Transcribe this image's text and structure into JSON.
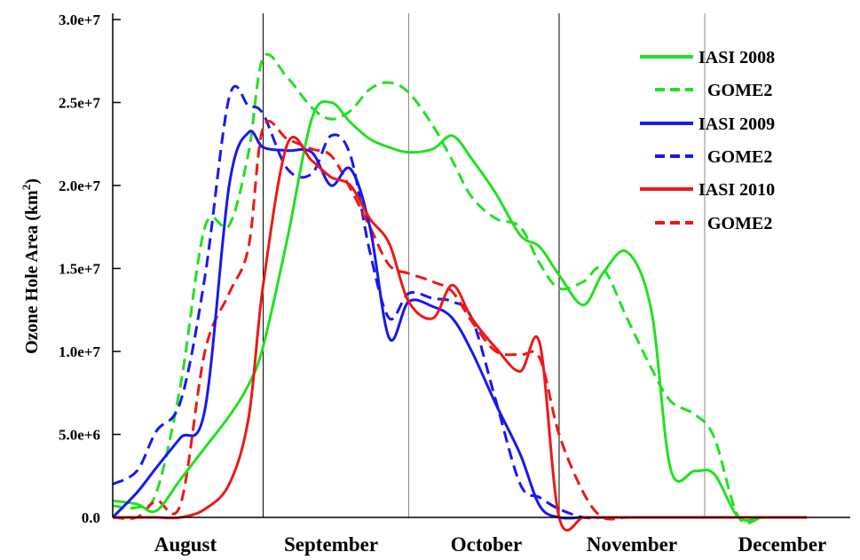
{
  "chart_data": {
    "type": "line",
    "title": "",
    "xlabel": "",
    "ylabel": "Ozone Hole Area (km",
    "ylabel_sup": "2",
    "ylabel_suffix": ")",
    "ylim": [
      0,
      30000000
    ],
    "yticks": [
      {
        "value": 0,
        "label": "0.0"
      },
      {
        "value": 5000000,
        "label": "5.0e+6"
      },
      {
        "value": 10000000,
        "label": "1.0e+7"
      },
      {
        "value": 15000000,
        "label": "1.5e+7"
      },
      {
        "value": 20000000,
        "label": "2.0e+7"
      },
      {
        "value": 25000000,
        "label": "2.5e+7"
      },
      {
        "value": 30000000,
        "label": "3.0e+7"
      }
    ],
    "xlim": [
      213,
      365
    ],
    "month_labels": [
      {
        "label": "August",
        "center": 228
      },
      {
        "label": "September",
        "center": 258
      },
      {
        "label": "October",
        "center": 290
      },
      {
        "label": "November",
        "center": 320
      },
      {
        "label": "December",
        "center": 351
      }
    ],
    "month_boundaries": [
      244,
      274,
      305,
      335
    ],
    "legend_position": "top-right",
    "series": [
      {
        "name": "IASI 2008",
        "color": "#22e022",
        "dash": false,
        "x": [
          213,
          218,
          222,
          227,
          232,
          237,
          241,
          244,
          249,
          254,
          258,
          262,
          266,
          270,
          274,
          279,
          283,
          287,
          292,
          297,
          301,
          305,
          310,
          314,
          319,
          324,
          328,
          333,
          337,
          342,
          347,
          352,
          356
        ],
        "y": [
          1000000,
          800000,
          400000,
          2300000,
          4200000,
          6100000,
          8000000,
          10300000,
          16800000,
          24000000,
          25000000,
          23800000,
          22800000,
          22300000,
          22000000,
          22200000,
          23000000,
          21600000,
          19500000,
          17000000,
          16300000,
          14600000,
          12800000,
          14700000,
          16000000,
          12500000,
          2900000,
          2800000,
          2600000,
          0,
          0,
          0,
          0
        ]
      },
      {
        "name": "GOME2",
        "color": "#22e022",
        "dash": true,
        "x": [
          213,
          218,
          222,
          227,
          232,
          237,
          241,
          244,
          249,
          254,
          258,
          262,
          266,
          270,
          274,
          279,
          283,
          287,
          292,
          297,
          301,
          305,
          310,
          314,
          319,
          324,
          328,
          333,
          337,
          342,
          347,
          352,
          356
        ],
        "y": [
          700000,
          600000,
          1500000,
          8000000,
          17500000,
          17600000,
          22000000,
          27700000,
          26500000,
          24700000,
          24000000,
          24500000,
          25800000,
          26200000,
          25600000,
          23600000,
          21500000,
          19300000,
          18000000,
          17500000,
          15300000,
          13800000,
          14200000,
          15000000,
          12000000,
          9000000,
          7000000,
          6200000,
          4800000,
          0,
          0,
          0,
          0
        ]
      },
      {
        "name": "IASI 2009",
        "color": "#1818ee",
        "dash": false,
        "x": [
          213,
          218,
          222,
          227,
          232,
          237,
          241,
          244,
          249,
          254,
          258,
          262,
          266,
          270,
          274,
          279,
          283,
          287,
          292,
          297,
          301,
          305,
          310,
          314,
          319,
          324,
          328,
          333,
          337,
          342,
          347,
          352,
          356
        ],
        "y": [
          0,
          1500000,
          3000000,
          4800000,
          6500000,
          20000000,
          23200000,
          22300000,
          22100000,
          22000000,
          20000000,
          21000000,
          17500000,
          10800000,
          13000000,
          12700000,
          12000000,
          10000000,
          6800000,
          3800000,
          700000,
          0,
          0,
          0,
          0,
          0,
          0,
          0,
          0,
          0,
          0,
          0,
          0
        ]
      },
      {
        "name": "GOME2",
        "color": "#1818ee",
        "dash": true,
        "x": [
          213,
          218,
          222,
          227,
          232,
          237,
          241,
          244,
          249,
          254,
          258,
          262,
          266,
          270,
          274,
          279,
          283,
          287,
          292,
          297,
          301,
          305,
          310,
          314,
          319,
          324,
          328,
          333,
          337,
          342,
          347,
          352,
          356
        ],
        "y": [
          2000000,
          2800000,
          5200000,
          7000000,
          14500000,
          25300000,
          24800000,
          24300000,
          21000000,
          20700000,
          23000000,
          21800000,
          16000000,
          12000000,
          13500000,
          13200000,
          13000000,
          12000000,
          7000000,
          2000000,
          1200000,
          500000,
          0,
          0,
          0,
          0,
          0,
          0,
          0,
          0,
          0,
          0,
          0
        ]
      },
      {
        "name": "IASI 2010",
        "color": "#ee1818",
        "dash": false,
        "x": [
          213,
          218,
          222,
          227,
          232,
          237,
          241,
          244,
          249,
          254,
          258,
          262,
          266,
          270,
          274,
          279,
          283,
          287,
          292,
          297,
          301,
          305,
          310,
          314,
          319,
          324,
          328,
          333,
          337,
          342,
          347,
          352,
          356
        ],
        "y": [
          0,
          0,
          0,
          0,
          500000,
          2000000,
          6000000,
          14000000,
          22500000,
          21500000,
          20500000,
          20000000,
          18000000,
          16500000,
          13000000,
          12000000,
          14000000,
          12000000,
          10200000,
          8800000,
          10500000,
          0,
          0,
          0,
          0,
          0,
          0,
          0,
          0,
          0,
          0,
          0,
          0
        ]
      },
      {
        "name": "GOME2",
        "color": "#ee1818",
        "dash": true,
        "x": [
          213,
          218,
          222,
          227,
          232,
          237,
          241,
          244,
          249,
          254,
          258,
          262,
          266,
          270,
          274,
          279,
          283,
          287,
          292,
          297,
          301,
          305,
          310,
          314,
          319,
          324,
          328,
          333,
          337,
          342,
          347,
          352,
          356
        ],
        "y": [
          0,
          0,
          1000000,
          800000,
          10000000,
          13500000,
          16300000,
          23500000,
          22800000,
          22200000,
          21800000,
          19800000,
          17500000,
          15200000,
          14700000,
          14200000,
          13600000,
          11800000,
          10000000,
          9800000,
          9600000,
          5000000,
          1500000,
          0,
          0,
          0,
          0,
          0,
          0,
          0,
          0,
          0,
          0
        ]
      }
    ]
  }
}
